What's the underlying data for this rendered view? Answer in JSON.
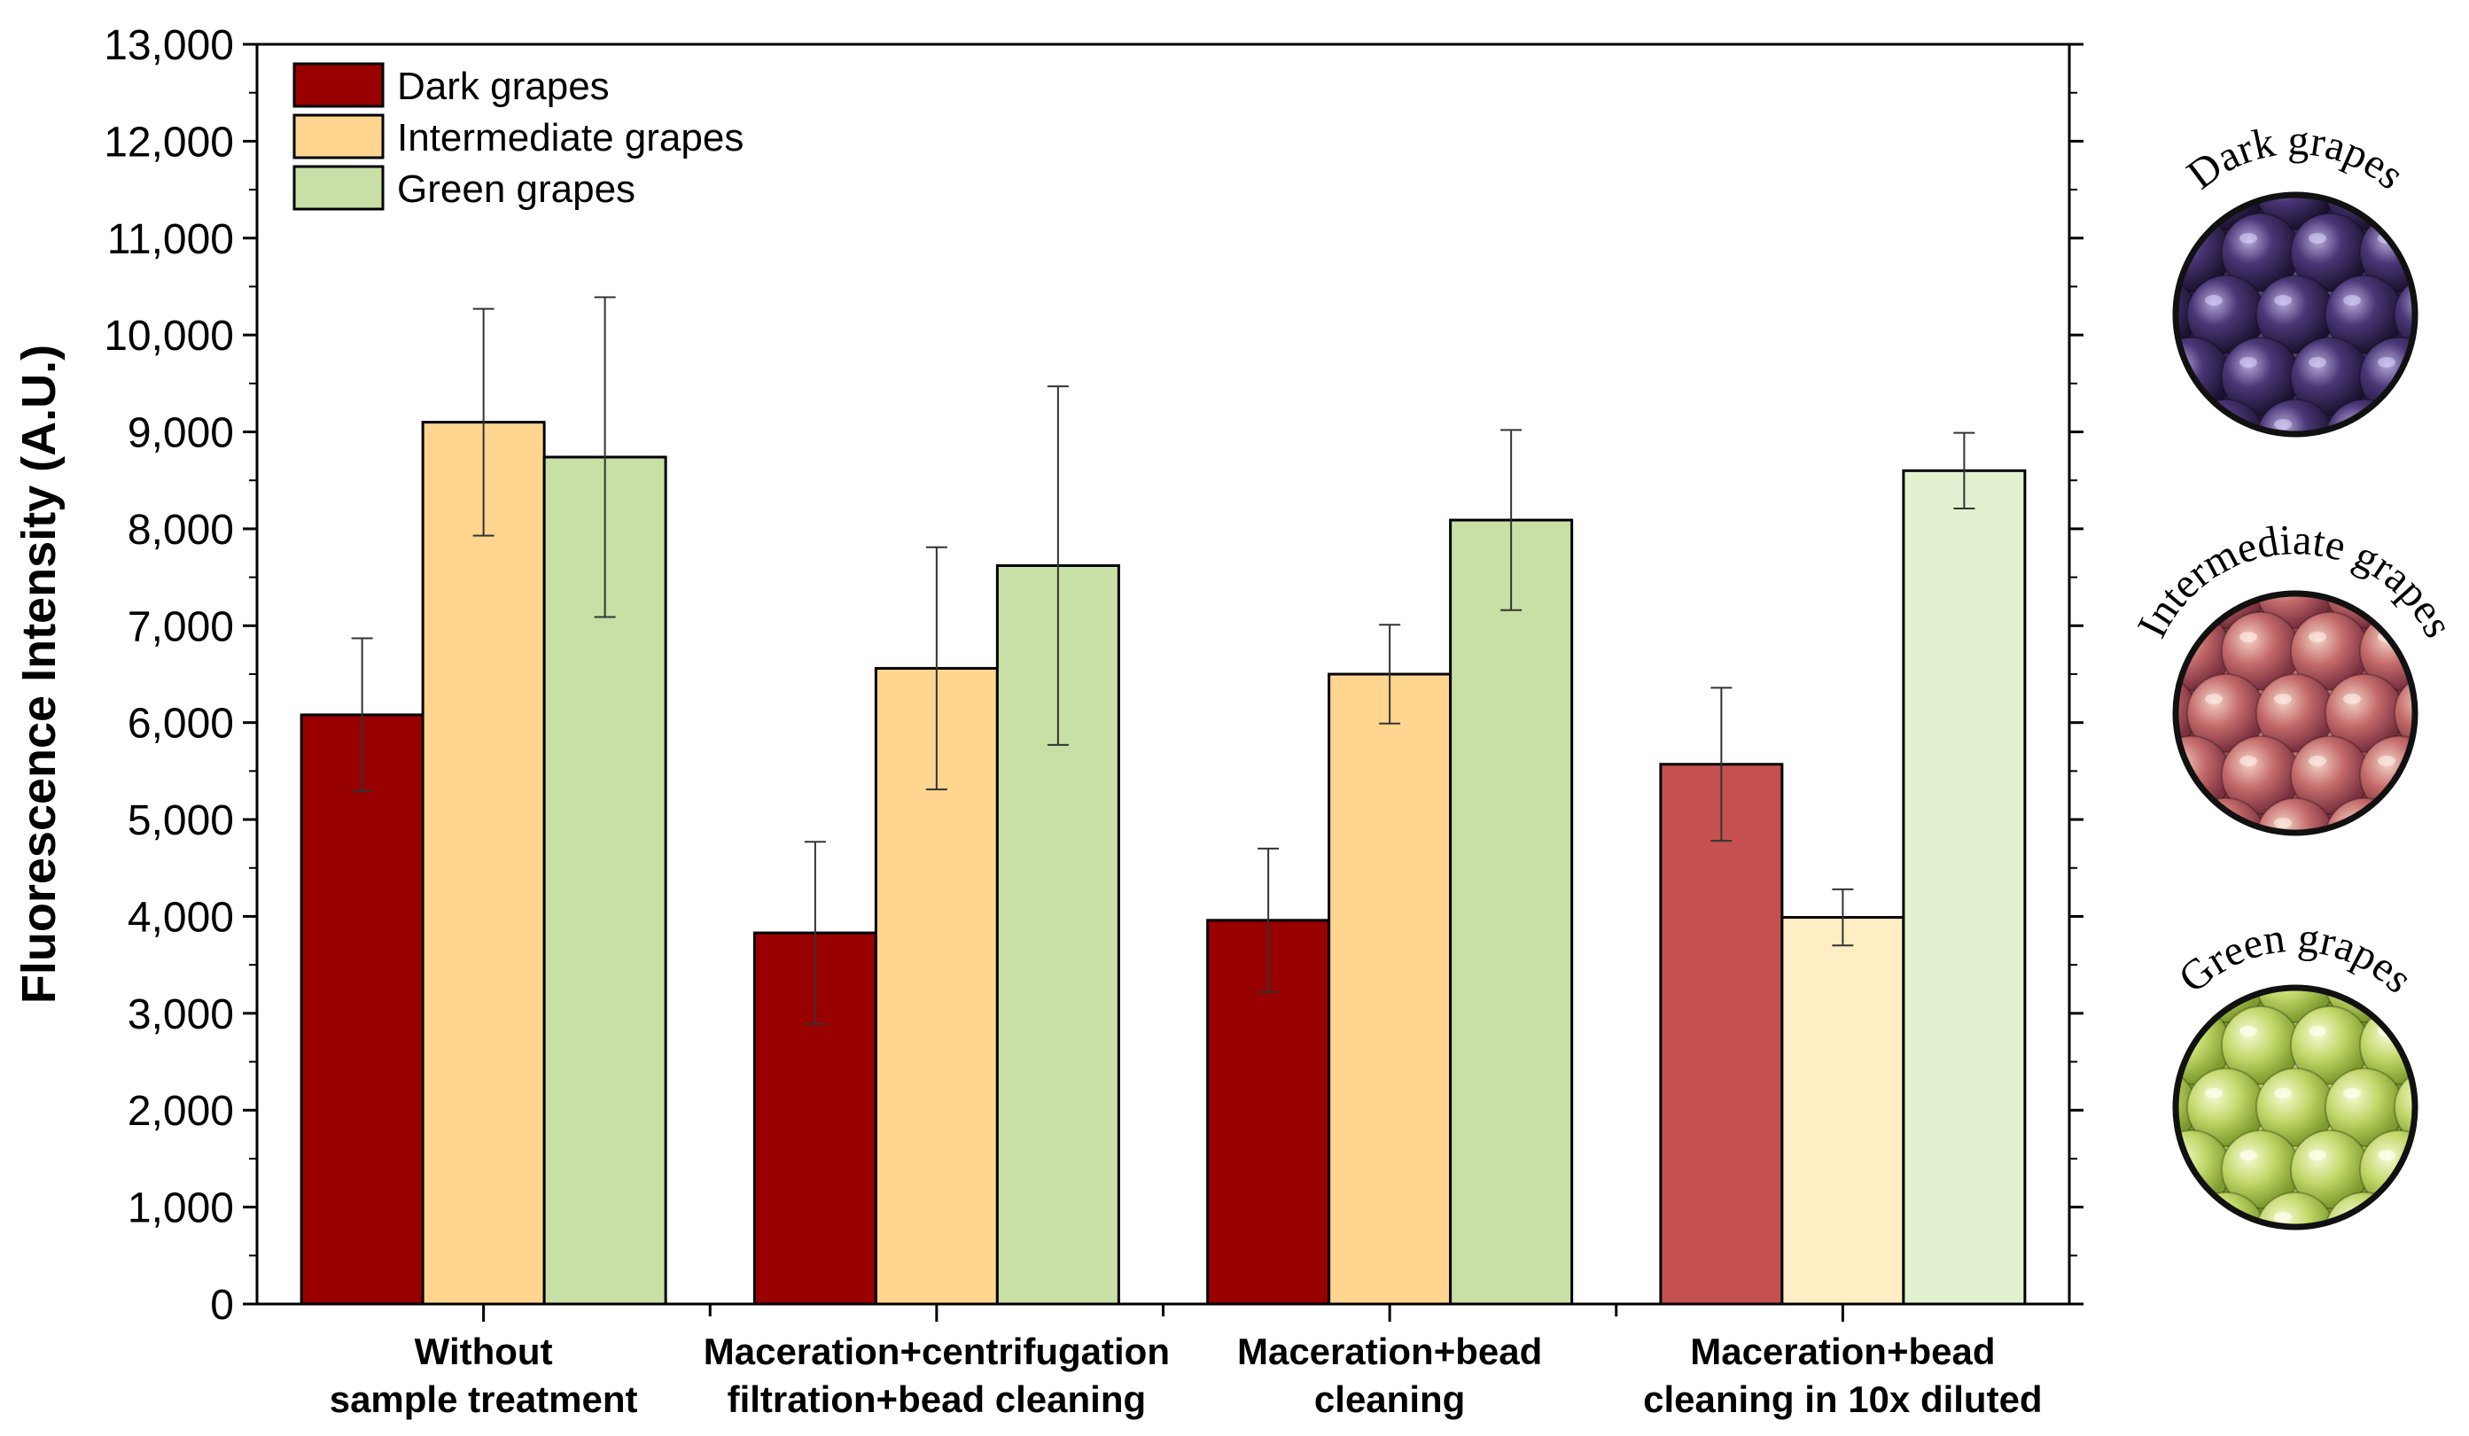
{
  "chart_data": {
    "type": "bar",
    "ylabel": "Fluorescence Intensity (A.U.)",
    "xlabel": "",
    "ylim": [
      0,
      13000
    ],
    "yticks": [
      "0",
      "1,000",
      "2,000",
      "3,000",
      "4,000",
      "5,000",
      "6,000",
      "7,000",
      "8,000",
      "9,000",
      "10,000",
      "11,000",
      "12,000",
      "13,000"
    ],
    "ytick_values": [
      0,
      1000,
      2000,
      3000,
      4000,
      5000,
      6000,
      7000,
      8000,
      9000,
      10000,
      11000,
      12000,
      13000
    ],
    "categories": [
      {
        "line1": "Without",
        "line2": "sample treatment"
      },
      {
        "line1": "Maceration+centrifugation",
        "line2": "filtration+bead cleaning"
      },
      {
        "line1": "Maceration+bead",
        "line2": "cleaning"
      },
      {
        "line1": "Maceration+bead",
        "line2": "cleaning in 10x diluted"
      }
    ],
    "series": [
      {
        "name": "Dark grapes",
        "color": "#990000",
        "values": [
          6080,
          3830,
          3960,
          5570
        ],
        "errors": [
          790,
          940,
          740,
          790
        ]
      },
      {
        "name": "Intermediate grapes",
        "color": "#FFD590",
        "values": [
          9100,
          6560,
          6500,
          3990
        ],
        "errors": [
          1170,
          1250,
          510,
          290
        ]
      },
      {
        "name": "Green grapes",
        "color": "#C8DFA6",
        "values": [
          8740,
          7620,
          8090,
          8600
        ],
        "errors": [
          1650,
          1850,
          930,
          390
        ]
      }
    ],
    "diluted_colors": [
      "#C55050",
      "#FFEDC4",
      "#E2F2D0"
    ],
    "legend_position": "top-left",
    "grid": false
  },
  "side_images": [
    {
      "label": "Dark grapes",
      "icon": "dark-grapes-photo"
    },
    {
      "label": "Intermediate grapes",
      "icon": "intermediate-grapes-photo"
    },
    {
      "label": "Green grapes",
      "icon": "green-grapes-photo"
    }
  ]
}
